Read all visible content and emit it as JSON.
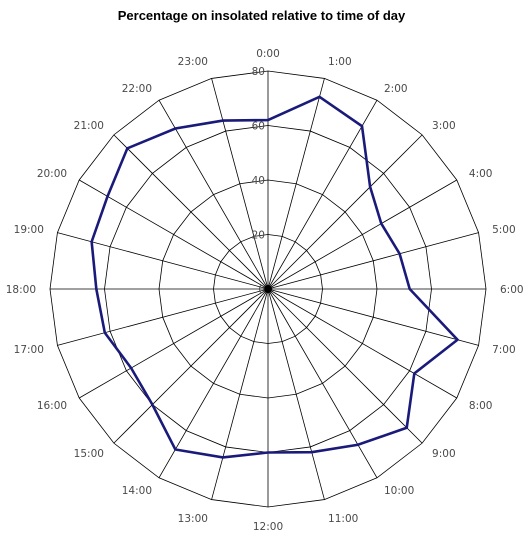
{
  "chart_data": {
    "type": "radar",
    "title": "Percentage on insolated relative to time of day",
    "categories": [
      "0:00",
      "1:00",
      "2:00",
      "3:00",
      "4:00",
      "5:00",
      "6:00",
      "7:00",
      "8:00",
      "9:00",
      "10:00",
      "11:00",
      "12:00",
      "13:00",
      "14:00",
      "15:00",
      "16:00",
      "17:00",
      "18:00",
      "19:00",
      "20:00",
      "21:00",
      "22:00",
      "23:00"
    ],
    "series": [
      {
        "color": "#1a1a7a",
        "values": [
          62,
          73,
          69,
          53,
          48,
          50,
          52,
          72,
          62,
          72,
          66,
          62,
          60,
          64,
          68,
          60,
          58,
          62,
          63,
          67,
          68,
          73,
          68,
          64
        ]
      }
    ],
    "rlim": [
      0,
      80
    ],
    "ticks": [
      "0",
      "20",
      "40",
      "60",
      "80"
    ],
    "tick_values": [
      0,
      20,
      40,
      60,
      80
    ],
    "grid": true,
    "grid_shape": "polygon"
  }
}
